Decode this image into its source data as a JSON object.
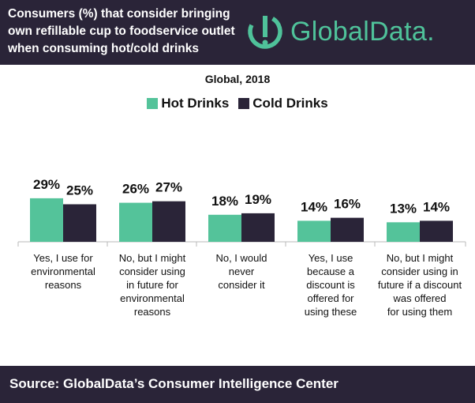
{
  "header": {
    "title": "Consumers (%) that consider bringing\nown refillable cup to foodservice outlet\nwhen consuming hot/cold drinks",
    "logo_text": "GlobalData."
  },
  "colors": {
    "header_bg": "#2a2438",
    "hot": "#54c39a",
    "cold": "#2a2438",
    "logo": "#4fc29a"
  },
  "chart_data": {
    "type": "bar",
    "subtitle": "Global, 2018",
    "categories": [
      "Yes, I use for\nenvironmental\nreasons",
      "No, but I might\nconsider using\nin future for\nenvironmental\nreasons",
      "No, I would\nnever\nconsider it",
      "Yes, I use\nbecause a\ndiscount is\noffered for\nusing these",
      "No, but I might\nconsider using in\nfuture if a discount\nwas offered\nfor using them"
    ],
    "series": [
      {
        "name": "Hot Drinks",
        "values": [
          29,
          26,
          18,
          14,
          13
        ],
        "labels": [
          "29%",
          "26%",
          "18%",
          "14%",
          "13%"
        ],
        "color": "#54c39a"
      },
      {
        "name": "Cold Drinks",
        "values": [
          25,
          27,
          19,
          16,
          14
        ],
        "labels": [
          "25%",
          "27%",
          "19%",
          "16%",
          "14%"
        ],
        "color": "#2a2438"
      }
    ],
    "unit": "%",
    "ylim": [
      0,
      50
    ],
    "grid": false,
    "legend_position": "top"
  },
  "footer": {
    "source": "Source:  GlobalData’s Consumer Intelligence Center"
  }
}
